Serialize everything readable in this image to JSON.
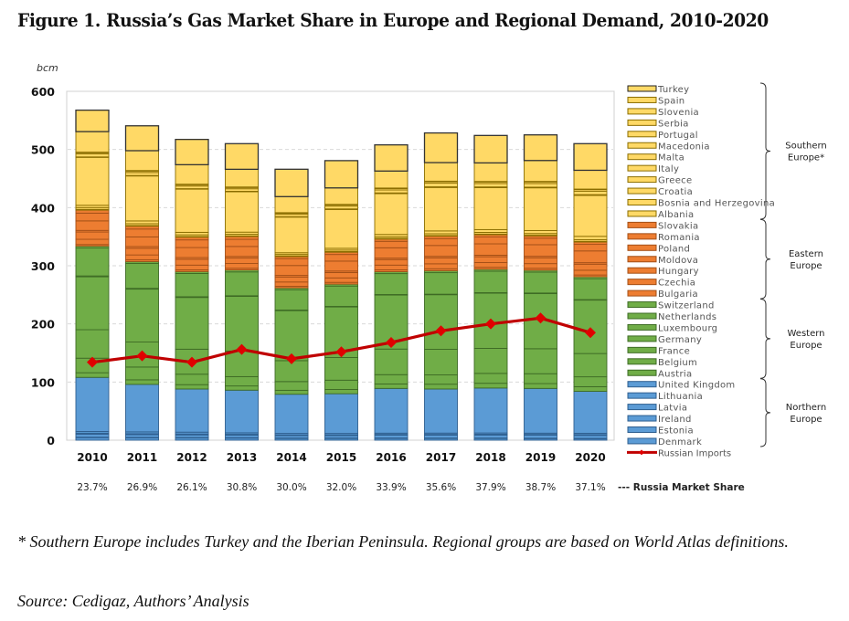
{
  "figure": {
    "title": "Figure 1. Russia’s Gas Market Share in Europe and Regional Demand, 2010-2020",
    "footnote": "* Southern Europe includes Turkey and the Iberian Peninsula. Regional groups are based on World Atlas definitions.",
    "source": "Source: Cedigaz, Authors’ Analysis"
  },
  "chart_data": {
    "type": "bar",
    "stacked": true,
    "title": "Russia’s Gas Market Share in Europe and Regional Demand, 2010-2020",
    "ylabel": "bcm",
    "xlabel": "",
    "ylim": [
      0,
      600
    ],
    "yticks": [
      0,
      100,
      200,
      300,
      400,
      500,
      600
    ],
    "grid": "horizontal dashed",
    "legend_position": "right",
    "categories": [
      "2010",
      "2011",
      "2012",
      "2013",
      "2014",
      "2015",
      "2016",
      "2017",
      "2018",
      "2019",
      "2020"
    ],
    "colors": {
      "Northern Europe": "#5b9bd5",
      "Western Europe": "#70ad47",
      "Eastern Europe": "#ed7d31",
      "Southern Europe": "#ffd966",
      "Russian Imports": "#c00000"
    },
    "regions": [
      {
        "name": "Southern Europe*",
        "label_lines": [
          "Southern",
          "Europe*"
        ],
        "members": [
          "Turkey",
          "Spain",
          "Slovenia",
          "Serbia",
          "Portugal",
          "Macedonia",
          "Malta",
          "Italy",
          "Greece",
          "Croatia",
          "Bosnia and Herzegovina",
          "Albania"
        ]
      },
      {
        "name": "Eastern Europe",
        "label_lines": [
          "Eastern",
          "Europe"
        ],
        "members": [
          "Slovakia",
          "Romania",
          "Poland",
          "Moldova",
          "Hungary",
          "Czechia",
          "Bulgaria"
        ]
      },
      {
        "name": "Western Europe",
        "label_lines": [
          "Western",
          "Europe"
        ],
        "members": [
          "Switzerland",
          "Netherlands",
          "Luxembourg",
          "Germany",
          "France",
          "Belgium",
          "Austria"
        ]
      },
      {
        "name": "Northern Europe",
        "label_lines": [
          "Northern",
          "Europe"
        ],
        "members": [
          "United Kingdom",
          "Lithuania",
          "Latvia",
          "Ireland",
          "Estonia",
          "Denmark"
        ]
      }
    ],
    "series": [
      {
        "name": "Denmark",
        "region": "Northern Europe",
        "values": [
          4.5,
          4.2,
          3.9,
          3.7,
          3.2,
          3.2,
          3.3,
          3.2,
          3.2,
          2.9,
          2.6
        ]
      },
      {
        "name": "Estonia",
        "region": "Northern Europe",
        "values": [
          0.7,
          0.6,
          0.7,
          0.7,
          0.5,
          0.5,
          0.5,
          0.5,
          0.5,
          0.5,
          0.5
        ]
      },
      {
        "name": "Ireland",
        "region": "Northern Europe",
        "values": [
          5.2,
          4.7,
          4.5,
          4.3,
          4.2,
          4.2,
          4.8,
          5.0,
          5.2,
          5.3,
          5.2
        ]
      },
      {
        "name": "Latvia",
        "region": "Northern Europe",
        "values": [
          1.6,
          1.6,
          1.5,
          1.4,
          1.3,
          1.2,
          1.3,
          1.2,
          1.3,
          1.2,
          1.2
        ]
      },
      {
        "name": "Lithuania",
        "region": "Northern Europe",
        "values": [
          3.0,
          3.2,
          3.2,
          2.6,
          2.5,
          2.5,
          2.2,
          2.3,
          2.2,
          2.2,
          2.4
        ]
      },
      {
        "name": "United Kingdom",
        "region": "Northern Europe",
        "values": [
          93.0,
          81.7,
          74.2,
          73.3,
          67.3,
          68.3,
          76.9,
          75.8,
          77.3,
          76.9,
          72.1
        ]
      },
      {
        "name": "Austria",
        "region": "Western Europe",
        "values": [
          8.0,
          7.8,
          7.5,
          7.3,
          6.8,
          7.3,
          7.7,
          8.3,
          8.2,
          8.3,
          8.0
        ]
      },
      {
        "name": "Belgium",
        "region": "Western Europe",
        "values": [
          25,
          22,
          18,
          16,
          15,
          16,
          16,
          16,
          17,
          17,
          17
        ]
      },
      {
        "name": "France",
        "region": "Western Europe",
        "values": [
          49,
          43,
          43,
          44,
          36,
          39,
          44,
          44,
          43,
          43,
          40
        ]
      },
      {
        "name": "Germany",
        "region": "Western Europe",
        "values": [
          91,
          91,
          89,
          94,
          86,
          87,
          93,
          94,
          95,
          95,
          92
        ]
      },
      {
        "name": "Luxembourg",
        "region": "Western Europe",
        "values": [
          1.5,
          1.3,
          1.2,
          1.1,
          1.0,
          0.9,
          0.8,
          0.8,
          0.8,
          0.8,
          0.8
        ]
      },
      {
        "name": "Netherlands",
        "region": "Western Europe",
        "values": [
          48,
          43,
          40,
          41,
          35,
          35,
          36,
          37,
          37,
          36,
          36
        ]
      },
      {
        "name": "Switzerland",
        "region": "Western Europe",
        "values": [
          3.4,
          3.2,
          3.4,
          3.5,
          3.2,
          3.3,
          3.4,
          3.5,
          3.4,
          3.4,
          3.3
        ]
      },
      {
        "name": "Bulgaria",
        "region": "Eastern Europe",
        "values": [
          2.6,
          3.1,
          2.9,
          2.8,
          2.7,
          3.0,
          3.1,
          3.3,
          3.2,
          3.1,
          3.0
        ]
      },
      {
        "name": "Czechia",
        "region": "Eastern Europe",
        "values": [
          9.0,
          8.2,
          8.1,
          8.2,
          7.4,
          7.7,
          8.1,
          8.5,
          8.2,
          8.1,
          8.2
        ]
      },
      {
        "name": "Hungary",
        "region": "Eastern Europe",
        "values": [
          12.5,
          11.5,
          10.1,
          9.3,
          8.6,
          9.2,
          9.5,
          10.2,
          10.0,
          10.0,
          10.4
        ]
      },
      {
        "name": "Moldova",
        "region": "Eastern Europe",
        "values": [
          2.8,
          2.9,
          2.9,
          2.8,
          2.7,
          2.6,
          2.5,
          2.6,
          2.6,
          2.6,
          2.6
        ]
      },
      {
        "name": "Poland",
        "region": "Eastern Europe",
        "values": [
          16.4,
          16.6,
          17.2,
          17.2,
          17.0,
          17.1,
          17.8,
          18.7,
          19.6,
          19.9,
          20.2
        ]
      },
      {
        "name": "Romania",
        "region": "Eastern Europe",
        "values": [
          13.3,
          13.6,
          13.2,
          12.2,
          11.9,
          11.4,
          11.1,
          11.8,
          11.7,
          11.2,
          11.3
        ]
      },
      {
        "name": "Slovakia",
        "region": "Eastern Europe",
        "values": [
          6.0,
          5.6,
          5.4,
          5.7,
          4.4,
          4.7,
          4.7,
          5.0,
          4.8,
          4.8,
          4.9
        ]
      },
      {
        "name": "Albania",
        "region": "Southern Europe*",
        "values": [
          0.1,
          0.1,
          0.1,
          0.1,
          0.1,
          0.1,
          0.1,
          0.1,
          0.1,
          0.1,
          0.1
        ]
      },
      {
        "name": "Bosnia and Herzegovina",
        "region": "Southern Europe*",
        "values": [
          0.3,
          0.3,
          0.3,
          0.2,
          0.2,
          0.2,
          0.2,
          0.2,
          0.2,
          0.2,
          0.2
        ]
      },
      {
        "name": "Croatia",
        "region": "Southern Europe*",
        "values": [
          3.2,
          3.1,
          2.9,
          2.8,
          2.5,
          2.5,
          2.7,
          3.0,
          2.9,
          2.9,
          2.9
        ]
      },
      {
        "name": "Greece",
        "region": "Southern Europe*",
        "values": [
          3.9,
          4.8,
          4.3,
          3.6,
          2.9,
          3.1,
          4.1,
          4.9,
          4.8,
          5.2,
          5.7
        ]
      },
      {
        "name": "Italy",
        "region": "Southern Europe*",
        "values": [
          83.1,
          77.9,
          74.9,
          70.1,
          61.9,
          67.5,
          70.9,
          75.2,
          72.7,
          73.9,
          71.0
        ]
      },
      {
        "name": "Macedonia",
        "region": "Southern Europe*",
        "values": [
          0.1,
          0.2,
          0.2,
          0.2,
          0.1,
          0.1,
          0.2,
          0.3,
          0.3,
          0.3,
          0.3
        ]
      },
      {
        "name": "Malta",
        "region": "Southern Europe*",
        "values": [
          0.0,
          0.0,
          0.0,
          0.0,
          0.0,
          0.2,
          0.4,
          0.4,
          0.4,
          0.4,
          0.4
        ]
      },
      {
        "name": "Portugal",
        "region": "Southern Europe*",
        "values": [
          5.1,
          5.2,
          4.5,
          4.3,
          4.1,
          4.8,
          5.1,
          6.2,
          5.8,
          6.2,
          6.0
        ]
      },
      {
        "name": "Serbia",
        "region": "Southern Europe*",
        "values": [
          2.1,
          2.5,
          2.3,
          2.3,
          2.0,
          2.2,
          2.4,
          2.6,
          2.7,
          2.8,
          2.7
        ]
      },
      {
        "name": "Slovenia",
        "region": "Southern Europe*",
        "values": [
          1.0,
          0.9,
          0.9,
          0.8,
          0.8,
          0.8,
          0.9,
          0.9,
          0.9,
          0.9,
          0.9
        ]
      },
      {
        "name": "Spain",
        "region": "Southern Europe*",
        "values": [
          35.3,
          34.1,
          33.5,
          30.4,
          27.6,
          28.3,
          29.2,
          31.9,
          31.9,
          35.9,
          32.3
        ]
      },
      {
        "name": "Turkey",
        "region": "Southern Europe*",
        "values": [
          36.9,
          42.8,
          43.5,
          44.1,
          47.1,
          46.9,
          45.0,
          51.0,
          47.2,
          44.1,
          45.8
        ]
      },
      {
        "name": "Russian Imports",
        "type": "line",
        "values": [
          134,
          145,
          134,
          156,
          140,
          152,
          168,
          188,
          200,
          210,
          185
        ]
      }
    ],
    "totals_approx": [
      565,
      542,
      515,
      505,
      466,
      476,
      498,
      527,
      527,
      545,
      500
    ],
    "annotations": {
      "market_share_label": "--- Russia Market Share",
      "market_share": [
        "23.7%",
        "26.9%",
        "26.1%",
        "30.8%",
        "30.0%",
        "32.0%",
        "33.9%",
        "35.6%",
        "37.9%",
        "38.7%",
        "37.1%"
      ]
    }
  }
}
